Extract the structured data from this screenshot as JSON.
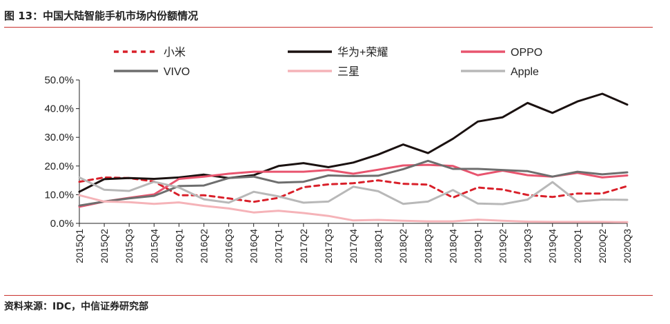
{
  "figure_title": "图 13：中国大陆智能手机市场内份额情况",
  "source_note": "资料来源：IDC，中信证券研究部",
  "chart_data": {
    "type": "line",
    "title": "",
    "xlabel": "",
    "ylabel": "",
    "ylim": [
      0,
      50
    ],
    "yticks": [
      "0.0%",
      "10.0%",
      "20.0%",
      "30.0%",
      "40.0%",
      "50.0%"
    ],
    "grid": false,
    "legend_position": "top",
    "categories": [
      "2015Q1",
      "2015Q2",
      "2015Q3",
      "2015Q4",
      "2016Q1",
      "2016Q2",
      "2016Q3",
      "2016Q4",
      "2017Q1",
      "2017Q2",
      "2017Q3",
      "2017Q4",
      "2018Q1",
      "2018Q2",
      "2018Q3",
      "2018Q4",
      "2019Q1",
      "2019Q2",
      "2019Q3",
      "2019Q4",
      "2020Q1",
      "2020Q2",
      "2020Q3"
    ],
    "series": [
      {
        "name": "小米",
        "color": "#d9202a",
        "dash": true,
        "values": [
          14.5,
          16.0,
          15.8,
          14.6,
          9.8,
          9.8,
          8.7,
          7.5,
          8.9,
          12.6,
          13.6,
          14.0,
          15.0,
          13.8,
          13.5,
          9.0,
          12.5,
          11.8,
          9.9,
          9.2,
          10.4,
          10.4,
          13.0
        ]
      },
      {
        "name": "华为+荣耀",
        "color": "#1a1110",
        "dash": false,
        "values": [
          11.0,
          15.4,
          15.8,
          15.5,
          16.0,
          17.0,
          15.8,
          16.8,
          20.0,
          21.0,
          19.6,
          21.2,
          24.0,
          27.5,
          24.5,
          29.5,
          35.5,
          37.0,
          42.0,
          38.5,
          42.5,
          45.2,
          41.4
        ]
      },
      {
        "name": "OPPO",
        "color": "#e8546e",
        "dash": false,
        "values": [
          5.8,
          7.6,
          8.9,
          10.1,
          15.5,
          16.3,
          17.3,
          18.0,
          18.0,
          18.0,
          18.6,
          17.3,
          18.7,
          20.2,
          20.4,
          20.0,
          16.8,
          18.4,
          16.8,
          16.3,
          17.6,
          16.0,
          16.7
        ]
      },
      {
        "name": "VIVO",
        "color": "#6e6e6e",
        "dash": false,
        "values": [
          6.2,
          7.6,
          8.7,
          9.6,
          13.0,
          13.2,
          15.8,
          16.3,
          14.2,
          14.5,
          16.7,
          16.5,
          16.6,
          18.9,
          21.8,
          19.0,
          19.0,
          18.6,
          18.2,
          16.3,
          18.0,
          17.1,
          17.8
        ]
      },
      {
        "name": "三星",
        "color": "#f5b3b8",
        "dash": false,
        "values": [
          9.8,
          7.6,
          7.4,
          6.8,
          7.3,
          6.1,
          5.2,
          3.8,
          4.4,
          3.6,
          2.6,
          1.0,
          1.2,
          0.9,
          0.7,
          0.7,
          1.3,
          0.9,
          0.6,
          0.5,
          0.5,
          0.5,
          0.4
        ]
      },
      {
        "name": "Apple",
        "color": "#b8b8b8",
        "dash": false,
        "values": [
          16.0,
          11.7,
          11.3,
          14.5,
          12.5,
          8.4,
          7.2,
          11.0,
          9.4,
          7.2,
          7.6,
          12.8,
          11.2,
          6.8,
          7.6,
          11.6,
          6.9,
          6.7,
          8.3,
          14.4,
          7.6,
          8.3,
          8.2
        ]
      }
    ]
  }
}
